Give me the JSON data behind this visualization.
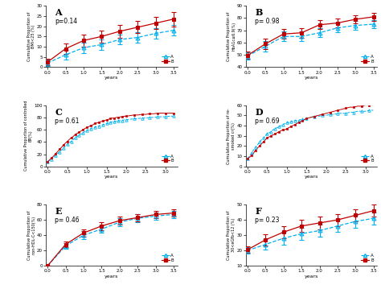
{
  "panels": [
    {
      "label": "A",
      "pval": "p=0.14",
      "ylabel": "Cumulative Proportion of\nBMI<25 (%)",
      "ylim": [
        0,
        30
      ],
      "yticks": [
        0,
        5,
        10,
        15,
        20,
        25,
        30
      ],
      "xlim": [
        -0.05,
        3.6
      ],
      "xticks": [
        0.0,
        0.5,
        1.0,
        1.5,
        2.0,
        2.5,
        3.0,
        3.5
      ],
      "dense": false,
      "xA": [
        0.0,
        0.5,
        1.0,
        1.5,
        2.0,
        2.5,
        3.0,
        3.5
      ],
      "yA": [
        2.0,
        6.0,
        9.5,
        11.0,
        13.5,
        14.5,
        16.5,
        18.0
      ],
      "errA": [
        1.5,
        2.5,
        2.5,
        2.5,
        2.5,
        2.5,
        2.5,
        2.5
      ],
      "xB": [
        0.0,
        0.5,
        1.0,
        1.5,
        2.0,
        2.5,
        3.0,
        3.5
      ],
      "yB": [
        2.5,
        9.0,
        13.0,
        15.0,
        17.5,
        19.5,
        21.5,
        23.5
      ],
      "errB": [
        1.5,
        2.5,
        3.0,
        3.0,
        3.0,
        3.0,
        3.0,
        3.5
      ]
    },
    {
      "label": "B",
      "pval": "p= 0.98",
      "ylabel": "Cumulative Proportion of\nHbA1c≤6.9(%)",
      "ylim": [
        40,
        90
      ],
      "yticks": [
        40,
        50,
        60,
        70,
        80,
        90
      ],
      "xlim": [
        -0.05,
        3.6
      ],
      "xticks": [
        0.0,
        0.5,
        1.0,
        1.5,
        2.0,
        2.5,
        3.0,
        3.5
      ],
      "dense": false,
      "xA": [
        0.0,
        0.5,
        1.0,
        1.5,
        2.0,
        2.5,
        3.0,
        3.5
      ],
      "yA": [
        49.0,
        57.0,
        65.0,
        65.0,
        68.0,
        72.0,
        74.0,
        75.0
      ],
      "errA": [
        3.0,
        4.0,
        4.0,
        4.0,
        3.5,
        3.5,
        3.5,
        3.5
      ],
      "xB": [
        0.0,
        0.5,
        1.0,
        1.5,
        2.0,
        2.5,
        3.0,
        3.5
      ],
      "yB": [
        49.5,
        59.0,
        67.0,
        68.0,
        74.5,
        76.0,
        79.0,
        81.0
      ],
      "errB": [
        3.0,
        4.0,
        4.0,
        4.0,
        3.5,
        3.5,
        3.5,
        3.5
      ]
    },
    {
      "label": "C",
      "pval": "p= 0.61",
      "ylabel": "Cumulative Proportion of controlled\nBP(%)",
      "ylim": [
        0,
        100
      ],
      "yticks": [
        0,
        20,
        40,
        60,
        80,
        100
      ],
      "xlim": [
        -0.05,
        3.3
      ],
      "xticks": [
        0.0,
        0.5,
        1.0,
        1.5,
        2.0,
        2.5,
        3.0
      ],
      "dense": true,
      "xA": [
        0.0,
        0.05,
        0.1,
        0.15,
        0.2,
        0.25,
        0.3,
        0.35,
        0.4,
        0.45,
        0.5,
        0.55,
        0.6,
        0.65,
        0.7,
        0.75,
        0.8,
        0.85,
        0.9,
        0.95,
        1.0,
        1.05,
        1.1,
        1.15,
        1.2,
        1.25,
        1.3,
        1.35,
        1.4,
        1.45,
        1.5,
        1.55,
        1.6,
        1.65,
        1.7,
        1.75,
        1.8,
        1.85,
        1.9,
        1.95,
        2.0,
        2.1,
        2.2,
        2.3,
        2.4,
        2.5,
        2.6,
        2.7,
        2.8,
        2.9,
        3.0,
        3.1,
        3.2
      ],
      "yA": [
        8,
        10,
        12,
        15,
        18,
        21,
        24,
        27,
        30,
        33,
        36,
        39,
        41,
        44,
        47,
        49,
        51,
        53,
        55,
        57,
        59,
        60,
        62,
        63,
        64,
        65,
        66,
        67,
        68,
        69,
        70,
        71,
        72,
        73,
        73,
        74,
        74,
        75,
        75,
        76,
        76,
        77,
        78,
        78,
        79,
        79,
        80,
        80,
        81,
        81,
        81,
        82,
        82
      ],
      "xB": [
        0.0,
        0.05,
        0.1,
        0.15,
        0.2,
        0.25,
        0.3,
        0.35,
        0.4,
        0.45,
        0.5,
        0.55,
        0.6,
        0.65,
        0.7,
        0.75,
        0.8,
        0.85,
        0.9,
        0.95,
        1.0,
        1.05,
        1.1,
        1.15,
        1.2,
        1.25,
        1.3,
        1.35,
        1.4,
        1.45,
        1.5,
        1.55,
        1.6,
        1.65,
        1.7,
        1.75,
        1.8,
        1.85,
        1.9,
        1.95,
        2.0,
        2.1,
        2.2,
        2.3,
        2.4,
        2.5,
        2.6,
        2.7,
        2.8,
        2.9,
        3.0,
        3.1,
        3.2
      ],
      "yB": [
        8,
        11,
        14,
        17,
        21,
        24,
        28,
        31,
        35,
        38,
        41,
        44,
        47,
        49,
        52,
        54,
        56,
        58,
        60,
        62,
        64,
        65,
        67,
        68,
        70,
        71,
        72,
        73,
        74,
        75,
        76,
        77,
        78,
        79,
        79,
        80,
        80,
        81,
        81,
        82,
        82,
        83,
        84,
        84,
        85,
        85,
        86,
        86,
        87,
        87,
        87,
        87,
        87
      ]
    },
    {
      "label": "D",
      "pval": "p= 0.69",
      "ylabel": "Cumulative Proportion of re-\nsmoked cr(%)",
      "ylim": [
        0,
        60
      ],
      "yticks": [
        0,
        10,
        20,
        30,
        40,
        50,
        60
      ],
      "xlim": [
        -0.05,
        3.3
      ],
      "xticks": [
        0.0,
        0.5,
        1.0,
        1.5,
        2.0,
        2.5,
        3.0
      ],
      "dense": true,
      "xA": [
        0.0,
        0.05,
        0.1,
        0.15,
        0.2,
        0.25,
        0.3,
        0.35,
        0.4,
        0.45,
        0.5,
        0.55,
        0.6,
        0.65,
        0.7,
        0.75,
        0.8,
        0.85,
        0.9,
        0.95,
        1.0,
        1.05,
        1.1,
        1.15,
        1.2,
        1.25,
        1.3,
        1.35,
        1.4,
        1.45,
        1.5,
        1.6,
        1.7,
        1.8,
        1.9,
        2.0,
        2.1,
        2.2,
        2.3,
        2.4,
        2.5,
        2.6,
        2.7,
        2.8,
        2.9,
        3.0,
        3.1,
        3.2
      ],
      "yA": [
        8,
        10,
        13,
        16,
        19,
        21,
        24,
        26,
        28,
        30,
        32,
        33,
        34,
        36,
        37,
        38,
        39,
        40,
        41,
        42,
        43,
        43,
        44,
        44,
        45,
        45,
        45,
        46,
        46,
        46,
        47,
        48,
        49,
        49,
        50,
        50,
        51,
        51,
        52,
        52,
        52,
        53,
        53,
        54,
        54,
        54,
        55,
        55
      ],
      "xB": [
        0.0,
        0.05,
        0.1,
        0.15,
        0.2,
        0.25,
        0.3,
        0.35,
        0.4,
        0.45,
        0.5,
        0.55,
        0.6,
        0.65,
        0.7,
        0.75,
        0.8,
        0.85,
        0.9,
        0.95,
        1.0,
        1.05,
        1.1,
        1.15,
        1.2,
        1.25,
        1.3,
        1.35,
        1.4,
        1.45,
        1.5,
        1.6,
        1.7,
        1.8,
        1.9,
        2.0,
        2.1,
        2.2,
        2.3,
        2.4,
        2.5,
        2.6,
        2.7,
        2.8,
        2.9,
        3.0,
        3.1,
        3.2
      ],
      "yB": [
        8,
        9,
        11,
        13,
        16,
        18,
        20,
        22,
        24,
        26,
        28,
        29,
        30,
        31,
        32,
        33,
        34,
        35,
        36,
        36,
        37,
        38,
        39,
        40,
        41,
        42,
        43,
        44,
        45,
        46,
        47,
        48,
        49,
        50,
        51,
        52,
        53,
        54,
        55,
        56,
        57,
        58,
        58,
        59,
        59,
        60,
        60,
        60
      ]
    },
    {
      "label": "E",
      "pval": "p= 0.46",
      "ylabel": "Cumulative Proportion of\nnon-HDL-C<150(%)",
      "ylim": [
        0,
        80
      ],
      "yticks": [
        0,
        20,
        40,
        60,
        80
      ],
      "xlim": [
        -0.05,
        3.6
      ],
      "xticks": [
        0.0,
        0.5,
        1.0,
        1.5,
        2.0,
        2.5,
        3.0,
        3.5
      ],
      "dense": false,
      "xA": [
        0.0,
        0.5,
        1.0,
        1.5,
        2.0,
        2.5,
        3.0,
        3.5
      ],
      "yA": [
        0.0,
        26.0,
        40.0,
        48.0,
        57.0,
        62.0,
        65.0,
        67.0
      ],
      "errA": [
        0.5,
        4.0,
        5.0,
        5.0,
        5.0,
        5.0,
        5.0,
        5.0
      ],
      "xB": [
        0.0,
        0.5,
        1.0,
        1.5,
        2.0,
        2.5,
        3.0,
        3.5
      ],
      "yB": [
        0.0,
        28.0,
        43.0,
        52.0,
        59.0,
        63.0,
        67.0,
        69.0
      ],
      "errB": [
        0.5,
        4.0,
        5.0,
        5.0,
        5.0,
        5.0,
        5.0,
        5.0
      ]
    },
    {
      "label": "F",
      "pval": "p= 0.23",
      "ylabel": "Cumulative Proportion of\n30<eGfb<12 (%)",
      "ylim": [
        10,
        50
      ],
      "yticks": [
        10,
        20,
        30,
        40,
        50
      ],
      "xlim": [
        -0.05,
        3.6
      ],
      "xticks": [
        0.0,
        0.5,
        1.0,
        1.5,
        2.0,
        2.5,
        3.0,
        3.5
      ],
      "dense": false,
      "xA": [
        0.0,
        0.5,
        1.0,
        1.5,
        2.0,
        2.5,
        3.0,
        3.5
      ],
      "yA": [
        20.0,
        24.0,
        28.0,
        31.0,
        33.0,
        36.0,
        39.0,
        41.0
      ],
      "errA": [
        2.0,
        3.5,
        4.0,
        4.0,
        4.0,
        4.0,
        4.0,
        4.0
      ],
      "xB": [
        0.0,
        0.5,
        1.0,
        1.5,
        2.0,
        2.5,
        3.0,
        3.5
      ],
      "yB": [
        20.5,
        27.0,
        32.0,
        36.0,
        38.0,
        40.0,
        43.0,
        46.0
      ],
      "errB": [
        2.0,
        3.5,
        4.0,
        4.0,
        4.0,
        4.0,
        4.0,
        4.0
      ]
    }
  ],
  "color_A": "#00b0f0",
  "color_B": "#c00000",
  "bg_color": "#ffffff",
  "plot_bg": "#f0f0f0",
  "xlabel": "years"
}
